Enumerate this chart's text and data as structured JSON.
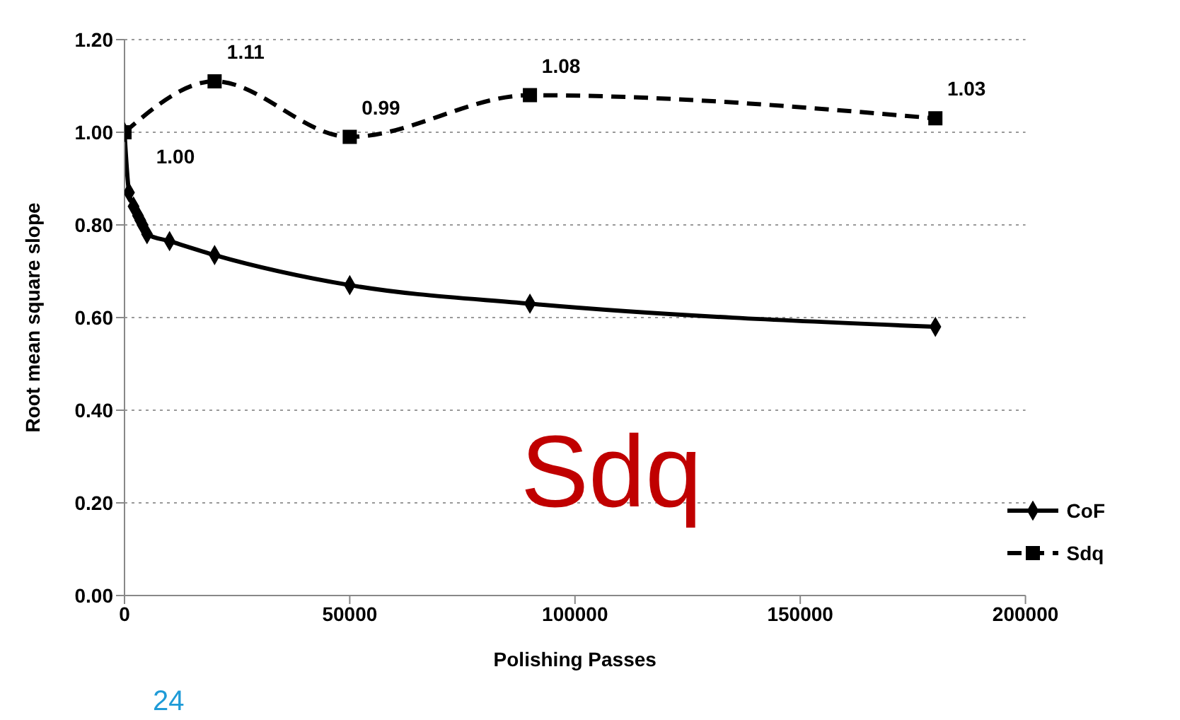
{
  "chart_data": {
    "type": "line",
    "xlabel": "Polishing Passes",
    "ylabel": "Root mean square slope",
    "xlim": [
      0,
      200000
    ],
    "xticks": [
      0,
      50000,
      100000,
      150000,
      200000
    ],
    "ylim": [
      0,
      1.2
    ],
    "yticks": [
      {
        "value": 0,
        "label": "0.00"
      },
      {
        "value": 0.2,
        "label": "0.20"
      },
      {
        "value": 0.4,
        "label": "0.40"
      },
      {
        "value": 0.6,
        "label": "0.60"
      },
      {
        "value": 0.8,
        "label": "0.80"
      },
      {
        "value": 1.0,
        "label": "1.00"
      },
      {
        "value": 1.2,
        "label": "1.20"
      }
    ],
    "grid": "y",
    "legend": "bottom right",
    "series": [
      {
        "name": "CoF",
        "color": "#000000",
        "marker": "diamond",
        "line_style": "solid",
        "x": [
          0,
          1000,
          2000,
          3000,
          3500,
          4000,
          5000,
          10000,
          20000,
          50000,
          90000,
          180000
        ],
        "values": [
          1.0,
          0.87,
          0.84,
          0.82,
          0.81,
          0.8,
          0.78,
          0.765,
          0.735,
          0.67,
          0.63,
          0.58
        ]
      },
      {
        "name": "Sdq",
        "color": "#000000",
        "marker": "square",
        "line_style": "dashed",
        "x": [
          0,
          20000,
          50000,
          90000,
          180000
        ],
        "values": [
          1.0,
          1.11,
          0.99,
          1.08,
          1.03
        ],
        "value_labels": [
          "1.00",
          "1.11",
          "0.99",
          "1.08",
          "1.03"
        ]
      }
    ],
    "annotations": [
      "Sdq",
      "24"
    ]
  }
}
